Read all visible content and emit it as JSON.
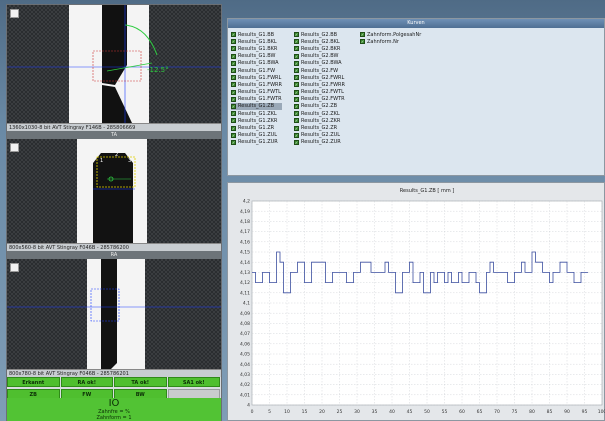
{
  "cameras": [
    {
      "status": "1360x1030-8 bit AVT Stingray F146B - 285806669",
      "caption": "TA",
      "angle_label": "-12.5°"
    },
    {
      "status": "800x560-8 bit AVT Stingray F046B - 285786200",
      "caption": "RA",
      "point_labels": [
        "2",
        "1",
        "3"
      ]
    },
    {
      "status": "800x780-8 bit AVT Stingray F046B - 285786201",
      "caption": ""
    }
  ],
  "status_rows": [
    [
      {
        "label": "Erkannt",
        "state": "ok"
      },
      {
        "label": "RA ok!",
        "state": "ok"
      },
      {
        "label": "TA ok!",
        "state": "ok"
      },
      {
        "label": "SA1 ok!",
        "state": "ok"
      }
    ],
    [
      {
        "label": "ZB",
        "state": "ok"
      },
      {
        "label": "FW",
        "state": "ok"
      },
      {
        "label": "BW",
        "state": "ok"
      },
      {
        "label": "",
        "state": "grey"
      }
    ]
  ],
  "result": {
    "io": "IO",
    "line1": "Zahnfre = %",
    "line2": "Zahnform = 1"
  },
  "kurven": {
    "title": "Kurven",
    "col1": [
      "Results_G1.BB",
      "Results_G1.BKL",
      "Results_G1.BKR",
      "Results_G1.BW",
      "Results_G1.BWA",
      "Results_G1.FW",
      "Results_G1.FWRL",
      "Results_G1.FWRR",
      "Results_G1.FWTL",
      "Results_G1.FWTR",
      "Results_G1.ZB",
      "Results_G1.ZKL",
      "Results_G1.ZKR",
      "Results_G1.ZR",
      "Results_G1.ZUL",
      "Results_G1.ZUR"
    ],
    "col2": [
      "Results_G2.BB",
      "Results_G2.BKL",
      "Results_G2.BKR",
      "Results_G2.BW",
      "Results_G2.BWA",
      "Results_G2.FW",
      "Results_G2.FWRL",
      "Results_G2.FWRR",
      "Results_G2.FWTL",
      "Results_G2.FWTR",
      "Results_G2.ZB",
      "Results_G2.ZKL",
      "Results_G2.ZKR",
      "Results_G2.ZR",
      "Results_G2.ZUL",
      "Results_G2.ZUR"
    ],
    "col3": [
      "Zahnform.PolgesahNr",
      "Zahnform.Nr"
    ],
    "selected_index": 10,
    "checkbox_color": "#3a8a2f"
  },
  "chart_data": {
    "type": "line",
    "title": "Results_G1.ZB [ mm ]",
    "xlabel": "",
    "ylabel": "",
    "xlim": [
      0,
      100
    ],
    "ylim": [
      4.0,
      4.2
    ],
    "x_ticks": [
      "0",
      "5",
      "10",
      "15",
      "20",
      "25",
      "30",
      "35",
      "40",
      "45",
      "50",
      "55",
      "60",
      "65",
      "70",
      "75",
      "80",
      "85",
      "90",
      "95",
      "100"
    ],
    "y_ticks": [
      "4,2",
      "4,19",
      "4,18",
      "4,17",
      "4,16",
      "4,15",
      "4,14",
      "4,13",
      "4,12",
      "4,11",
      "4,1",
      "4,09",
      "4,08",
      "4,07",
      "4,06",
      "4,05",
      "4,04",
      "4,03",
      "4,02",
      "4,01",
      "4"
    ],
    "grid": true,
    "line_color": "#3c4fa0",
    "series": [
      {
        "x": [
          0,
          1,
          2,
          3,
          4,
          5,
          6,
          7,
          8,
          9,
          10,
          11,
          12,
          13,
          14,
          15,
          16,
          17,
          18,
          19,
          20,
          21,
          22,
          23,
          24,
          25,
          26,
          27,
          28,
          29,
          30,
          31,
          32,
          33,
          34,
          35,
          36,
          37,
          38,
          39,
          40,
          41,
          42,
          43,
          44,
          45,
          46,
          47,
          48,
          49,
          50,
          51,
          52,
          53,
          54,
          55,
          56,
          57,
          58,
          59,
          60,
          61,
          62,
          63,
          64,
          65,
          66,
          67,
          68,
          69,
          70,
          71,
          72,
          73,
          74,
          75,
          76,
          77,
          78,
          79,
          80,
          81,
          82,
          83,
          84,
          85,
          86,
          87,
          88,
          89,
          90,
          91,
          92,
          93,
          94,
          95,
          96
        ],
        "values": [
          4.13,
          4.12,
          4.12,
          4.13,
          4.13,
          4.12,
          4.12,
          4.15,
          4.14,
          4.11,
          4.11,
          4.13,
          4.13,
          4.14,
          4.14,
          4.12,
          4.12,
          4.14,
          4.14,
          4.14,
          4.14,
          4.12,
          4.12,
          4.13,
          4.13,
          4.13,
          4.13,
          4.12,
          4.12,
          4.13,
          4.13,
          4.14,
          4.14,
          4.14,
          4.13,
          4.13,
          4.13,
          4.13,
          4.14,
          4.13,
          4.13,
          4.11,
          4.11,
          4.13,
          4.13,
          4.14,
          4.12,
          4.12,
          4.13,
          4.11,
          4.11,
          4.13,
          4.12,
          4.13,
          4.13,
          4.12,
          4.13,
          4.12,
          4.12,
          4.13,
          4.12,
          4.12,
          4.13,
          4.13,
          4.12,
          4.11,
          4.11,
          4.13,
          4.14,
          4.13,
          4.13,
          4.13,
          4.13,
          4.12,
          4.12,
          4.13,
          4.13,
          4.14,
          4.13,
          4.13,
          4.15,
          4.14,
          4.14,
          4.13,
          4.13,
          4.12,
          4.13,
          4.13,
          4.14,
          4.14,
          4.13,
          4.13,
          4.12,
          4.12,
          4.13,
          4.13,
          4.13
        ]
      }
    ]
  }
}
